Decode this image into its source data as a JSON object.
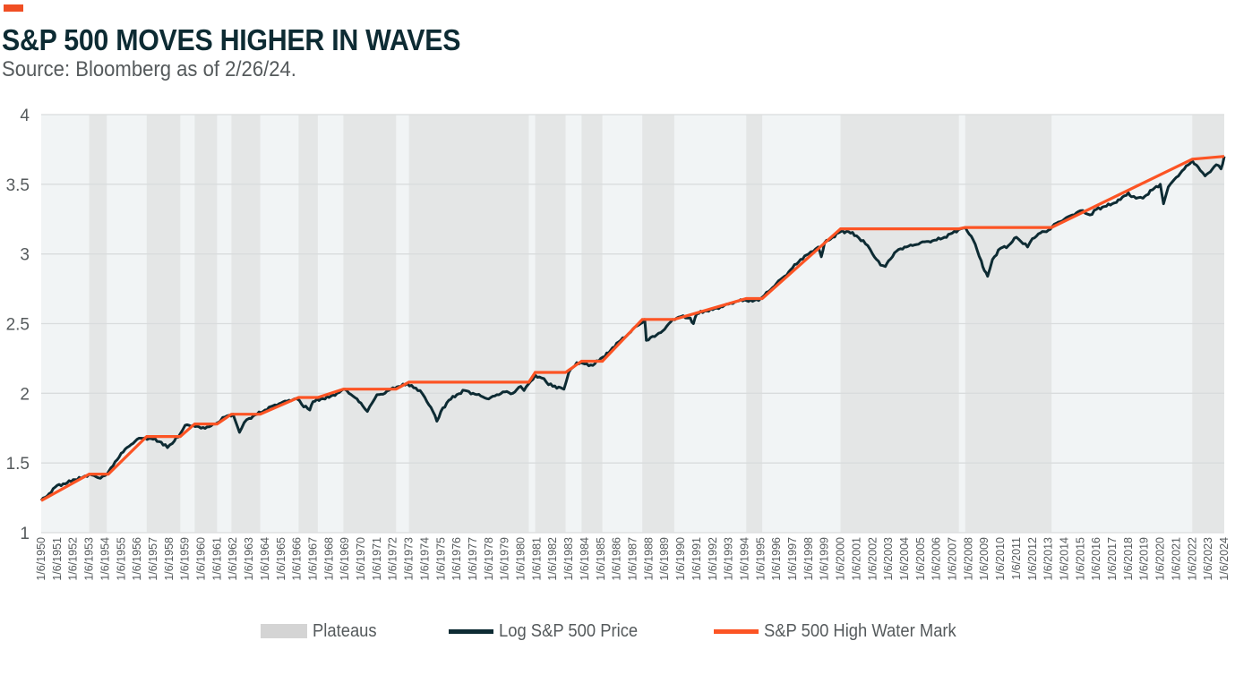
{
  "header": {
    "title": "S&P 500 MOVES HIGHER IN WAVES",
    "subtitle": "Source: Bloomberg as of 2/26/24."
  },
  "colors": {
    "accent": "#f04e23",
    "price_line": "#0d2b33",
    "high_water_mark": "#fc5424",
    "plateau": "#e4e6e6",
    "plot_background": "#f1f4f5",
    "grid": "#d9dcdd",
    "text": "#555a5c",
    "title": "#0d2b33"
  },
  "legend": {
    "items": [
      {
        "label": "Plateaus",
        "kind": "box",
        "color_key": "plateau_legend"
      },
      {
        "label": "Log S&P 500 Price",
        "kind": "line",
        "color_key": "price_line"
      },
      {
        "label": "S&P 500 High Water Mark",
        "kind": "line",
        "color_key": "high_water_mark"
      }
    ],
    "plateau_legend_color": "#d4d4d4"
  },
  "chart_data": {
    "type": "line",
    "title": "S&P 500 MOVES HIGHER IN WAVES",
    "subtitle": "Source: Bloomberg as of 2/26/24.",
    "xlabel": "",
    "ylabel": "",
    "xlim": [
      1950,
      2024
    ],
    "ylim": [
      1,
      4
    ],
    "yticks": [
      1,
      1.5,
      2,
      2.5,
      3,
      3.5,
      4
    ],
    "ytick_labels": [
      "1",
      "1.5",
      "2",
      "2.5",
      "3",
      "3.5",
      "4"
    ],
    "xtick_labels": [
      "1/6/1950",
      "1/6/1951",
      "1/6/1952",
      "1/6/1953",
      "1/6/1954",
      "1/6/1955",
      "1/6/1956",
      "1/6/1957",
      "1/6/1958",
      "1/6/1959",
      "1/6/1960",
      "1/6/1961",
      "1/6/1962",
      "1/6/1963",
      "1/6/1964",
      "1/6/1965",
      "1/6/1966",
      "1/6/1967",
      "1/6/1968",
      "1/6/1969",
      "1/6/1970",
      "1/6/1971",
      "1/6/1972",
      "1/6/1973",
      "1/6/1974",
      "1/6/1975",
      "1/6/1976",
      "1/6/1977",
      "1/6/1978",
      "1/6/1979",
      "1/6/1980",
      "1/6/1981",
      "1/6/1982",
      "1/6/1983",
      "1/6/1984",
      "1/6/1985",
      "1/6/1986",
      "1/6/1987",
      "1/6/1988",
      "1/6/1989",
      "1/6/1990",
      "1/6/1991",
      "1/6/1992",
      "1/6/1993",
      "1/6/1994",
      "1/6/1995",
      "1/6/1996",
      "1/6/1997",
      "1/6/1998",
      "1/6/1999",
      "1/6/2000",
      "1/6/2001",
      "1/6/2002",
      "1/6/2003",
      "1/6/2004",
      "1/6/2005",
      "1/6/2006",
      "1/6/2007",
      "1/6/2008",
      "1/6/2009",
      "1/6/2010",
      "1/6/2011",
      "1/6/2012",
      "1/6/2013",
      "1/6/2014",
      "1/6/2015",
      "1/6/2016",
      "1/6/2017",
      "1/6/2018",
      "1/6/2019",
      "1/6/2020",
      "1/6/2021",
      "1/6/2022",
      "1/6/2023",
      "1/6/2024"
    ],
    "grid": true,
    "legend_position": "bottom",
    "plateaus": [
      {
        "start": 1953.0,
        "end": 1954.1
      },
      {
        "start": 1956.6,
        "end": 1958.7
      },
      {
        "start": 1959.6,
        "end": 1961.0
      },
      {
        "start": 1961.9,
        "end": 1963.7
      },
      {
        "start": 1966.1,
        "end": 1967.3
      },
      {
        "start": 1968.9,
        "end": 1972.2
      },
      {
        "start": 1973.0,
        "end": 1980.5
      },
      {
        "start": 1980.9,
        "end": 1982.8
      },
      {
        "start": 1983.8,
        "end": 1985.1
      },
      {
        "start": 1987.6,
        "end": 1989.6
      },
      {
        "start": 1994.1,
        "end": 1995.1
      },
      {
        "start": 2000.0,
        "end": 2007.4
      },
      {
        "start": 2007.8,
        "end": 2013.2
      },
      {
        "start": 2022.0,
        "end": 2024.0
      }
    ],
    "series": [
      {
        "name": "Log S&P 500 Price",
        "x": [
          1950.0,
          1950.5,
          1951.0,
          1951.5,
          1952.0,
          1952.5,
          1953.0,
          1953.3,
          1953.7,
          1954.0,
          1954.5,
          1955.0,
          1955.5,
          1956.0,
          1956.5,
          1957.0,
          1957.5,
          1957.9,
          1958.2,
          1958.7,
          1959.0,
          1959.5,
          1960.0,
          1960.5,
          1960.9,
          1961.5,
          1962.0,
          1962.4,
          1962.7,
          1963.0,
          1963.5,
          1964.0,
          1964.5,
          1965.0,
          1965.5,
          1966.0,
          1966.3,
          1966.8,
          1967.0,
          1967.5,
          1968.0,
          1968.5,
          1969.0,
          1969.5,
          1970.0,
          1970.4,
          1970.7,
          1971.0,
          1971.5,
          1972.0,
          1972.5,
          1972.9,
          1973.3,
          1973.7,
          1974.0,
          1974.5,
          1974.75,
          1975.0,
          1975.5,
          1976.0,
          1976.5,
          1977.0,
          1977.5,
          1978.0,
          1978.5,
          1979.0,
          1979.5,
          1980.0,
          1980.2,
          1980.9,
          1981.3,
          1981.6,
          1982.0,
          1982.5,
          1982.7,
          1983.0,
          1983.5,
          1984.0,
          1984.5,
          1985.0,
          1985.5,
          1986.0,
          1986.5,
          1987.0,
          1987.5,
          1987.75,
          1987.85,
          1988.5,
          1989.0,
          1989.5,
          1990.0,
          1990.6,
          1990.8,
          1991.0,
          1991.5,
          1992.0,
          1992.5,
          1993.0,
          1993.5,
          1994.0,
          1994.5,
          1995.0,
          1995.5,
          1996.0,
          1996.5,
          1997.0,
          1997.5,
          1998.0,
          1998.6,
          1998.8,
          1999.0,
          1999.5,
          2000.0,
          2000.5,
          2001.0,
          2001.7,
          2002.0,
          2002.5,
          2002.8,
          2003.0,
          2003.5,
          2004.0,
          2004.5,
          2005.0,
          2005.5,
          2006.0,
          2006.5,
          2007.0,
          2007.5,
          2007.8,
          2008.3,
          2008.8,
          2009.0,
          2009.2,
          2009.5,
          2010.0,
          2010.5,
          2011.0,
          2011.7,
          2012.0,
          2012.5,
          2013.0,
          2013.5,
          2014.0,
          2014.5,
          2015.0,
          2015.6,
          2016.0,
          2016.5,
          2017.0,
          2017.5,
          2018.0,
          2018.2,
          2018.9,
          2019.0,
          2019.5,
          2020.0,
          2020.2,
          2020.5,
          2021.0,
          2021.5,
          2022.0,
          2022.5,
          2022.8,
          2023.0,
          2023.5,
          2023.8,
          2024.0
        ],
        "values": [
          1.23,
          1.28,
          1.34,
          1.35,
          1.38,
          1.39,
          1.42,
          1.41,
          1.39,
          1.41,
          1.48,
          1.57,
          1.62,
          1.67,
          1.68,
          1.67,
          1.65,
          1.61,
          1.64,
          1.71,
          1.77,
          1.77,
          1.75,
          1.76,
          1.78,
          1.83,
          1.85,
          1.72,
          1.79,
          1.82,
          1.85,
          1.88,
          1.91,
          1.93,
          1.95,
          1.96,
          1.92,
          1.88,
          1.94,
          1.96,
          1.97,
          2.0,
          2.03,
          1.98,
          1.93,
          1.87,
          1.93,
          1.99,
          2.0,
          2.04,
          2.05,
          2.07,
          2.04,
          2.02,
          1.97,
          1.87,
          1.8,
          1.87,
          1.95,
          1.99,
          2.02,
          2.0,
          1.98,
          1.96,
          1.99,
          2.01,
          2.0,
          2.05,
          2.02,
          2.13,
          2.11,
          2.08,
          2.05,
          2.04,
          2.03,
          2.15,
          2.22,
          2.21,
          2.2,
          2.25,
          2.29,
          2.36,
          2.4,
          2.46,
          2.5,
          2.53,
          2.38,
          2.42,
          2.46,
          2.53,
          2.55,
          2.54,
          2.5,
          2.57,
          2.59,
          2.6,
          2.62,
          2.64,
          2.66,
          2.67,
          2.66,
          2.68,
          2.73,
          2.79,
          2.84,
          2.9,
          2.96,
          3.0,
          3.05,
          2.98,
          3.08,
          3.12,
          3.16,
          3.16,
          3.13,
          3.06,
          3.0,
          2.92,
          2.91,
          2.95,
          3.02,
          3.05,
          3.06,
          3.08,
          3.09,
          3.1,
          3.12,
          3.15,
          3.18,
          3.19,
          3.1,
          2.95,
          2.88,
          2.84,
          2.96,
          3.04,
          3.06,
          3.12,
          3.05,
          3.11,
          3.15,
          3.17,
          3.22,
          3.25,
          3.28,
          3.31,
          3.28,
          3.32,
          3.34,
          3.36,
          3.39,
          3.44,
          3.41,
          3.4,
          3.41,
          3.46,
          3.5,
          3.36,
          3.48,
          3.55,
          3.61,
          3.67,
          3.6,
          3.56,
          3.58,
          3.64,
          3.61,
          3.7
        ]
      },
      {
        "name": "S&P 500 High Water Mark",
        "derived_from": "Log S&P 500 Price running maximum",
        "x": [
          1950.0,
          1953.0,
          1954.2,
          1956.6,
          1958.7,
          1959.6,
          1961.0,
          1961.9,
          1963.7,
          1966.1,
          1967.3,
          1968.9,
          1972.2,
          1973.0,
          1980.5,
          1980.9,
          1982.8,
          1983.8,
          1985.1,
          1987.6,
          1989.6,
          1994.1,
          1995.1,
          2000.0,
          2007.4,
          2007.8,
          2013.2,
          2022.0,
          2024.0
        ],
        "values": [
          1.23,
          1.42,
          1.42,
          1.69,
          1.69,
          1.78,
          1.78,
          1.85,
          1.85,
          1.97,
          1.97,
          2.03,
          2.03,
          2.08,
          2.08,
          2.15,
          2.15,
          2.23,
          2.23,
          2.53,
          2.53,
          2.68,
          2.68,
          3.18,
          3.18,
          3.19,
          3.19,
          3.68,
          3.7
        ]
      }
    ]
  }
}
